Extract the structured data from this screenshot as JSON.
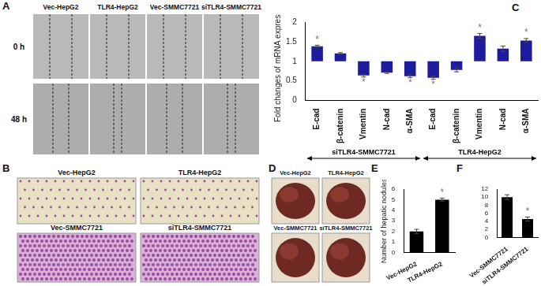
{
  "chart_data": [
    {
      "panel": "C",
      "type": "bar",
      "categories": [
        "E-cad",
        "β-catenin",
        "Vmentin",
        "N-cad",
        "α-SMA",
        "E-cad",
        "β-catenin",
        "Vmentin",
        "N-cad",
        "α-SMA"
      ],
      "values": [
        1.38,
        1.2,
        0.64,
        0.71,
        0.62,
        0.58,
        0.78,
        1.65,
        1.32,
        1.53
      ],
      "errors": [
        0.03,
        0.02,
        0.04,
        0.02,
        0.04,
        0.04,
        0.05,
        0.06,
        0.07,
        0.05
      ],
      "significance": [
        "*",
        null,
        "*",
        null,
        "*",
        "*",
        null,
        "*",
        null,
        "*"
      ],
      "base": 1,
      "groups": [
        {
          "name": "siTLR4-SMMC7721",
          "count": 5
        },
        {
          "name": "TLR4-HepG2",
          "count": 5
        }
      ],
      "y_label": "Fold changes of mRNA expression",
      "ylim": [
        0,
        2
      ],
      "yticks": [
        0,
        0.5,
        1,
        1.5,
        2
      ],
      "color": "#1c1c9c",
      "grid": false
    },
    {
      "panel": "E",
      "type": "bar",
      "categories": [
        "Vec-HepG2",
        "TLR4-HepG2"
      ],
      "values": [
        2,
        5
      ],
      "errors": [
        0.2,
        0.15
      ],
      "significance": [
        null,
        "*"
      ],
      "y_label": "Number of hepatic nodules",
      "ylim": [
        0,
        6
      ],
      "yticks": [
        0,
        1,
        2,
        3,
        4,
        5,
        6
      ],
      "color": "#000000",
      "grid": false
    },
    {
      "panel": "F",
      "type": "bar",
      "categories": [
        "Vec-SMMC7721",
        "siTLR4-SMMC7721"
      ],
      "values": [
        10,
        4.6
      ],
      "errors": [
        0.6,
        0.5
      ],
      "significance": [
        null,
        "*"
      ],
      "ylim": [
        0,
        12
      ],
      "yticks": [
        0,
        2,
        4,
        6,
        8,
        10,
        12
      ],
      "color": "#000000",
      "grid": false
    }
  ],
  "image_panels": [
    {
      "panel": "A",
      "columns": [
        "Vec-HepG2",
        "TLR4-HepG2",
        "Vec-SMMC7721",
        "siTLR4-SMMC7721"
      ],
      "rows": [
        "0 h",
        "48 h"
      ]
    },
    {
      "panel": "B",
      "rows": [
        [
          "Vec-HepG2",
          "TLR4-HepG2"
        ],
        [
          "Vec-SMMC7721",
          "siTLR4-SMMC7721"
        ]
      ]
    },
    {
      "panel": "D",
      "rows": [
        [
          "Vec-HepG2",
          "TLR4-HepG2"
        ],
        [
          "Vec-SMMC7721",
          "siTLR4-SMMC7721"
        ]
      ]
    }
  ]
}
